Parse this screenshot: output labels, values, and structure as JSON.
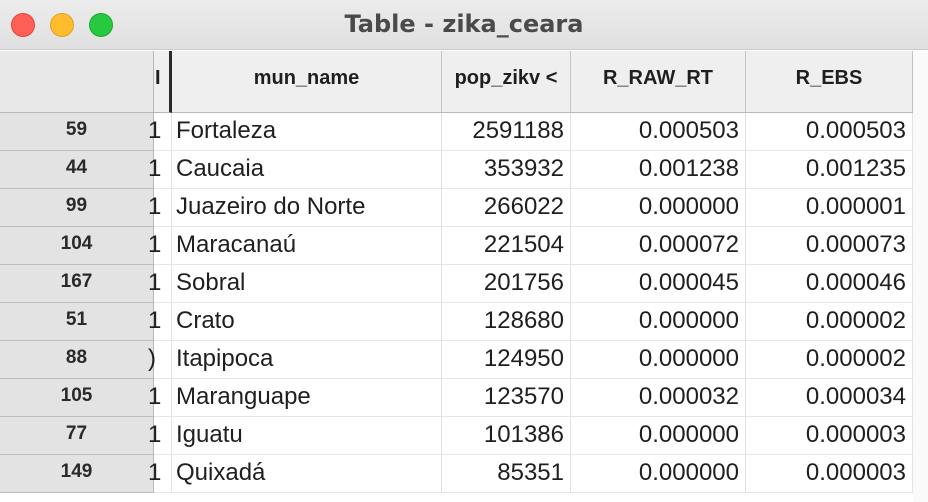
{
  "window": {
    "title": "Table - zika_ceara"
  },
  "table": {
    "columns": [
      {
        "key": "clipped",
        "label": "I"
      },
      {
        "key": "mun_name",
        "label": "mun_name"
      },
      {
        "key": "pop_zikv",
        "label": "pop_zikv <"
      },
      {
        "key": "r_raw_rt",
        "label": "R_RAW_RT"
      },
      {
        "key": "r_ebs",
        "label": "R_EBS"
      }
    ],
    "rows": [
      {
        "id": "59",
        "clipped": "1",
        "mun_name": "Fortaleza",
        "pop_zikv": "2591188",
        "r_raw_rt": "0.000503",
        "r_ebs": "0.000503"
      },
      {
        "id": "44",
        "clipped": "1",
        "mun_name": "Caucaia",
        "pop_zikv": "353932",
        "r_raw_rt": "0.001238",
        "r_ebs": "0.001235"
      },
      {
        "id": "99",
        "clipped": "1",
        "mun_name": "Juazeiro do Norte",
        "pop_zikv": "266022",
        "r_raw_rt": "0.000000",
        "r_ebs": "0.000001"
      },
      {
        "id": "104",
        "clipped": "1",
        "mun_name": "Maracanaú",
        "pop_zikv": "221504",
        "r_raw_rt": "0.000072",
        "r_ebs": "0.000073"
      },
      {
        "id": "167",
        "clipped": "1",
        "mun_name": "Sobral",
        "pop_zikv": "201756",
        "r_raw_rt": "0.000045",
        "r_ebs": "0.000046"
      },
      {
        "id": "51",
        "clipped": "1",
        "mun_name": "Crato",
        "pop_zikv": "128680",
        "r_raw_rt": "0.000000",
        "r_ebs": "0.000002"
      },
      {
        "id": "88",
        "clipped": ")",
        "mun_name": "Itapipoca",
        "pop_zikv": "124950",
        "r_raw_rt": "0.000000",
        "r_ebs": "0.000002"
      },
      {
        "id": "105",
        "clipped": "1",
        "mun_name": "Maranguape",
        "pop_zikv": "123570",
        "r_raw_rt": "0.000032",
        "r_ebs": "0.000034"
      },
      {
        "id": "77",
        "clipped": "1",
        "mun_name": "Iguatu",
        "pop_zikv": "101386",
        "r_raw_rt": "0.000000",
        "r_ebs": "0.000003"
      },
      {
        "id": "149",
        "clipped": "1",
        "mun_name": "Quixadá",
        "pop_zikv": "85351",
        "r_raw_rt": "0.000000",
        "r_ebs": "0.000003"
      }
    ]
  }
}
